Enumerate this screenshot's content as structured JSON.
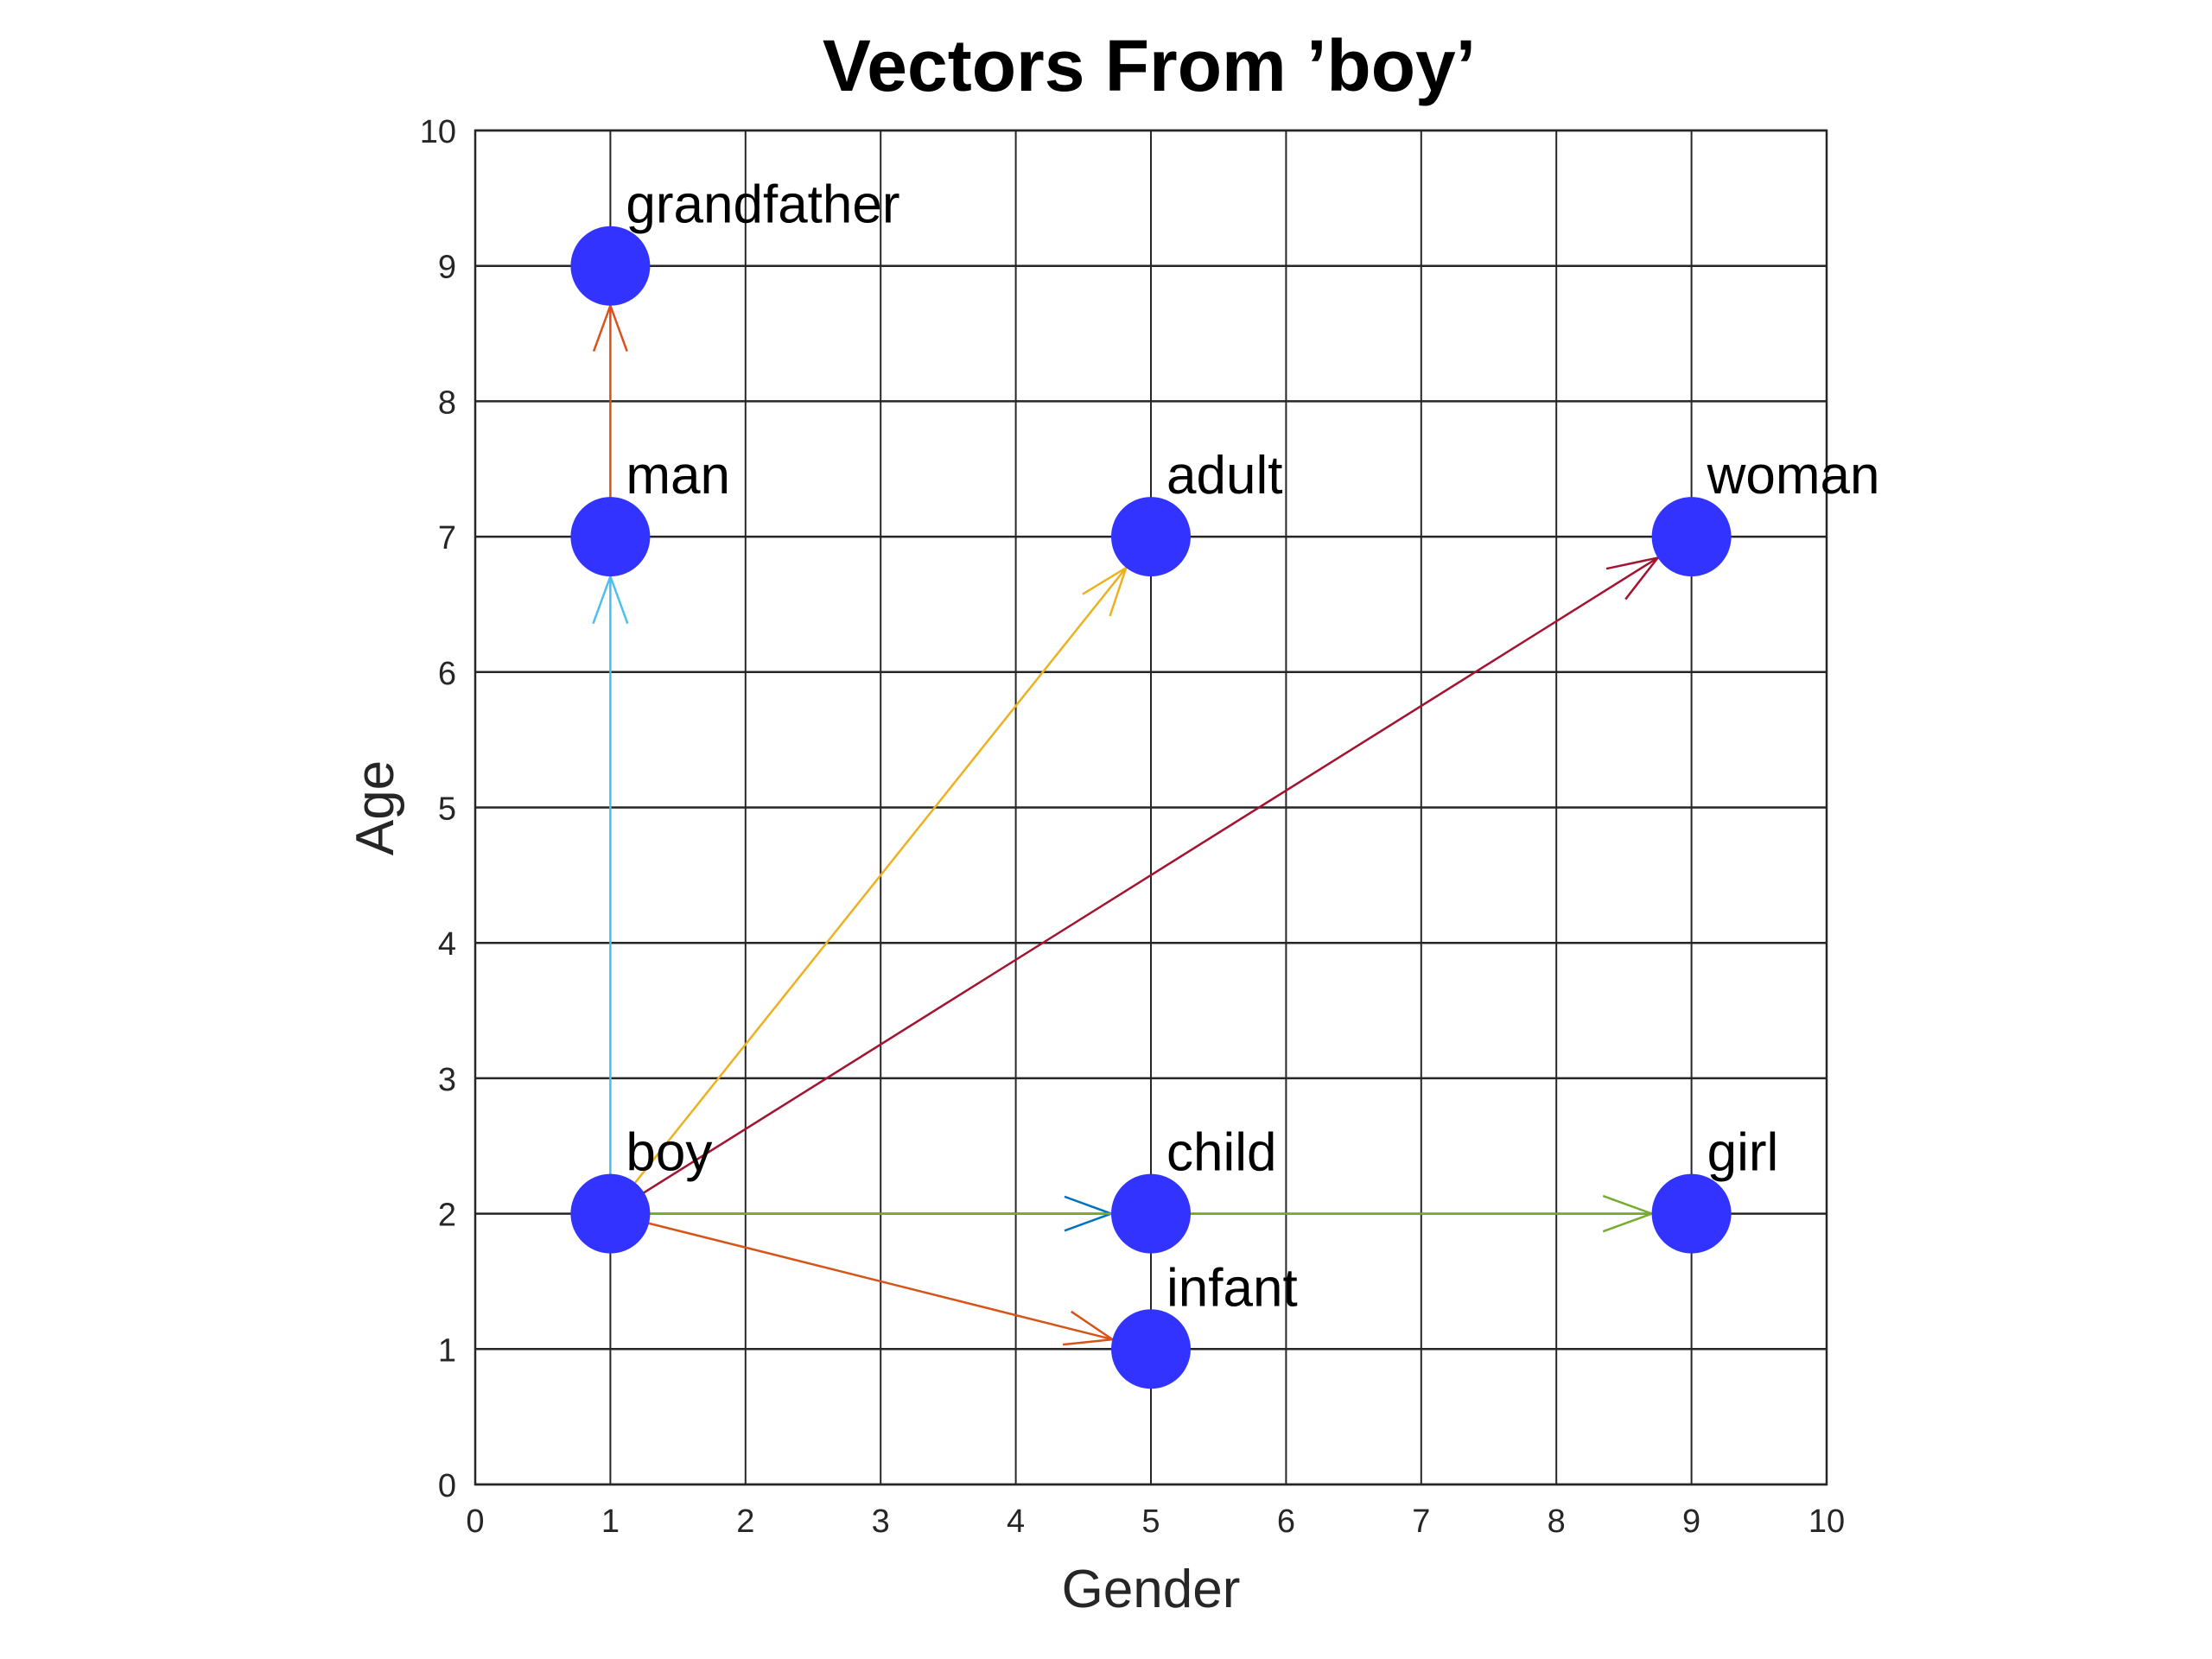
{
  "chart_data": {
    "type": "scatter",
    "title": "Vectors From ’boy’",
    "xlabel": "Gender",
    "ylabel": "Age",
    "xlim": [
      0,
      10
    ],
    "ylim": [
      0,
      10
    ],
    "xticks": [
      "0",
      "1",
      "2",
      "3",
      "4",
      "5",
      "6",
      "7",
      "8",
      "9",
      "10"
    ],
    "yticks": [
      "0",
      "1",
      "2",
      "3",
      "4",
      "5",
      "6",
      "7",
      "8",
      "9",
      "10"
    ],
    "grid": true,
    "marker_color": "#3333FF",
    "points": [
      {
        "label": "grandfather",
        "x": 1,
        "y": 9
      },
      {
        "label": "man",
        "x": 1,
        "y": 7
      },
      {
        "label": "adult",
        "x": 5,
        "y": 7
      },
      {
        "label": "woman",
        "x": 9,
        "y": 7
      },
      {
        "label": "boy",
        "x": 1,
        "y": 2
      },
      {
        "label": "child",
        "x": 5,
        "y": 2
      },
      {
        "label": "girl",
        "x": 9,
        "y": 2
      },
      {
        "label": "infant",
        "x": 5,
        "y": 1
      }
    ],
    "vectors": [
      {
        "from": [
          1,
          2
        ],
        "to": [
          1,
          7
        ],
        "color": "#4DBEEE"
      },
      {
        "from": [
          1,
          7
        ],
        "to": [
          1,
          9
        ],
        "color": "#D95319"
      },
      {
        "from": [
          1,
          2
        ],
        "to": [
          5,
          7
        ],
        "color": "#EDB120"
      },
      {
        "from": [
          1,
          2
        ],
        "to": [
          9,
          7
        ],
        "color": "#A2142F"
      },
      {
        "from": [
          1,
          2
        ],
        "to": [
          5,
          2
        ],
        "color": "#0072BD"
      },
      {
        "from": [
          1,
          2
        ],
        "to": [
          9,
          2
        ],
        "color": "#77AC30"
      },
      {
        "from": [
          1,
          2
        ],
        "to": [
          5,
          1
        ],
        "color": "#D95319"
      }
    ]
  }
}
